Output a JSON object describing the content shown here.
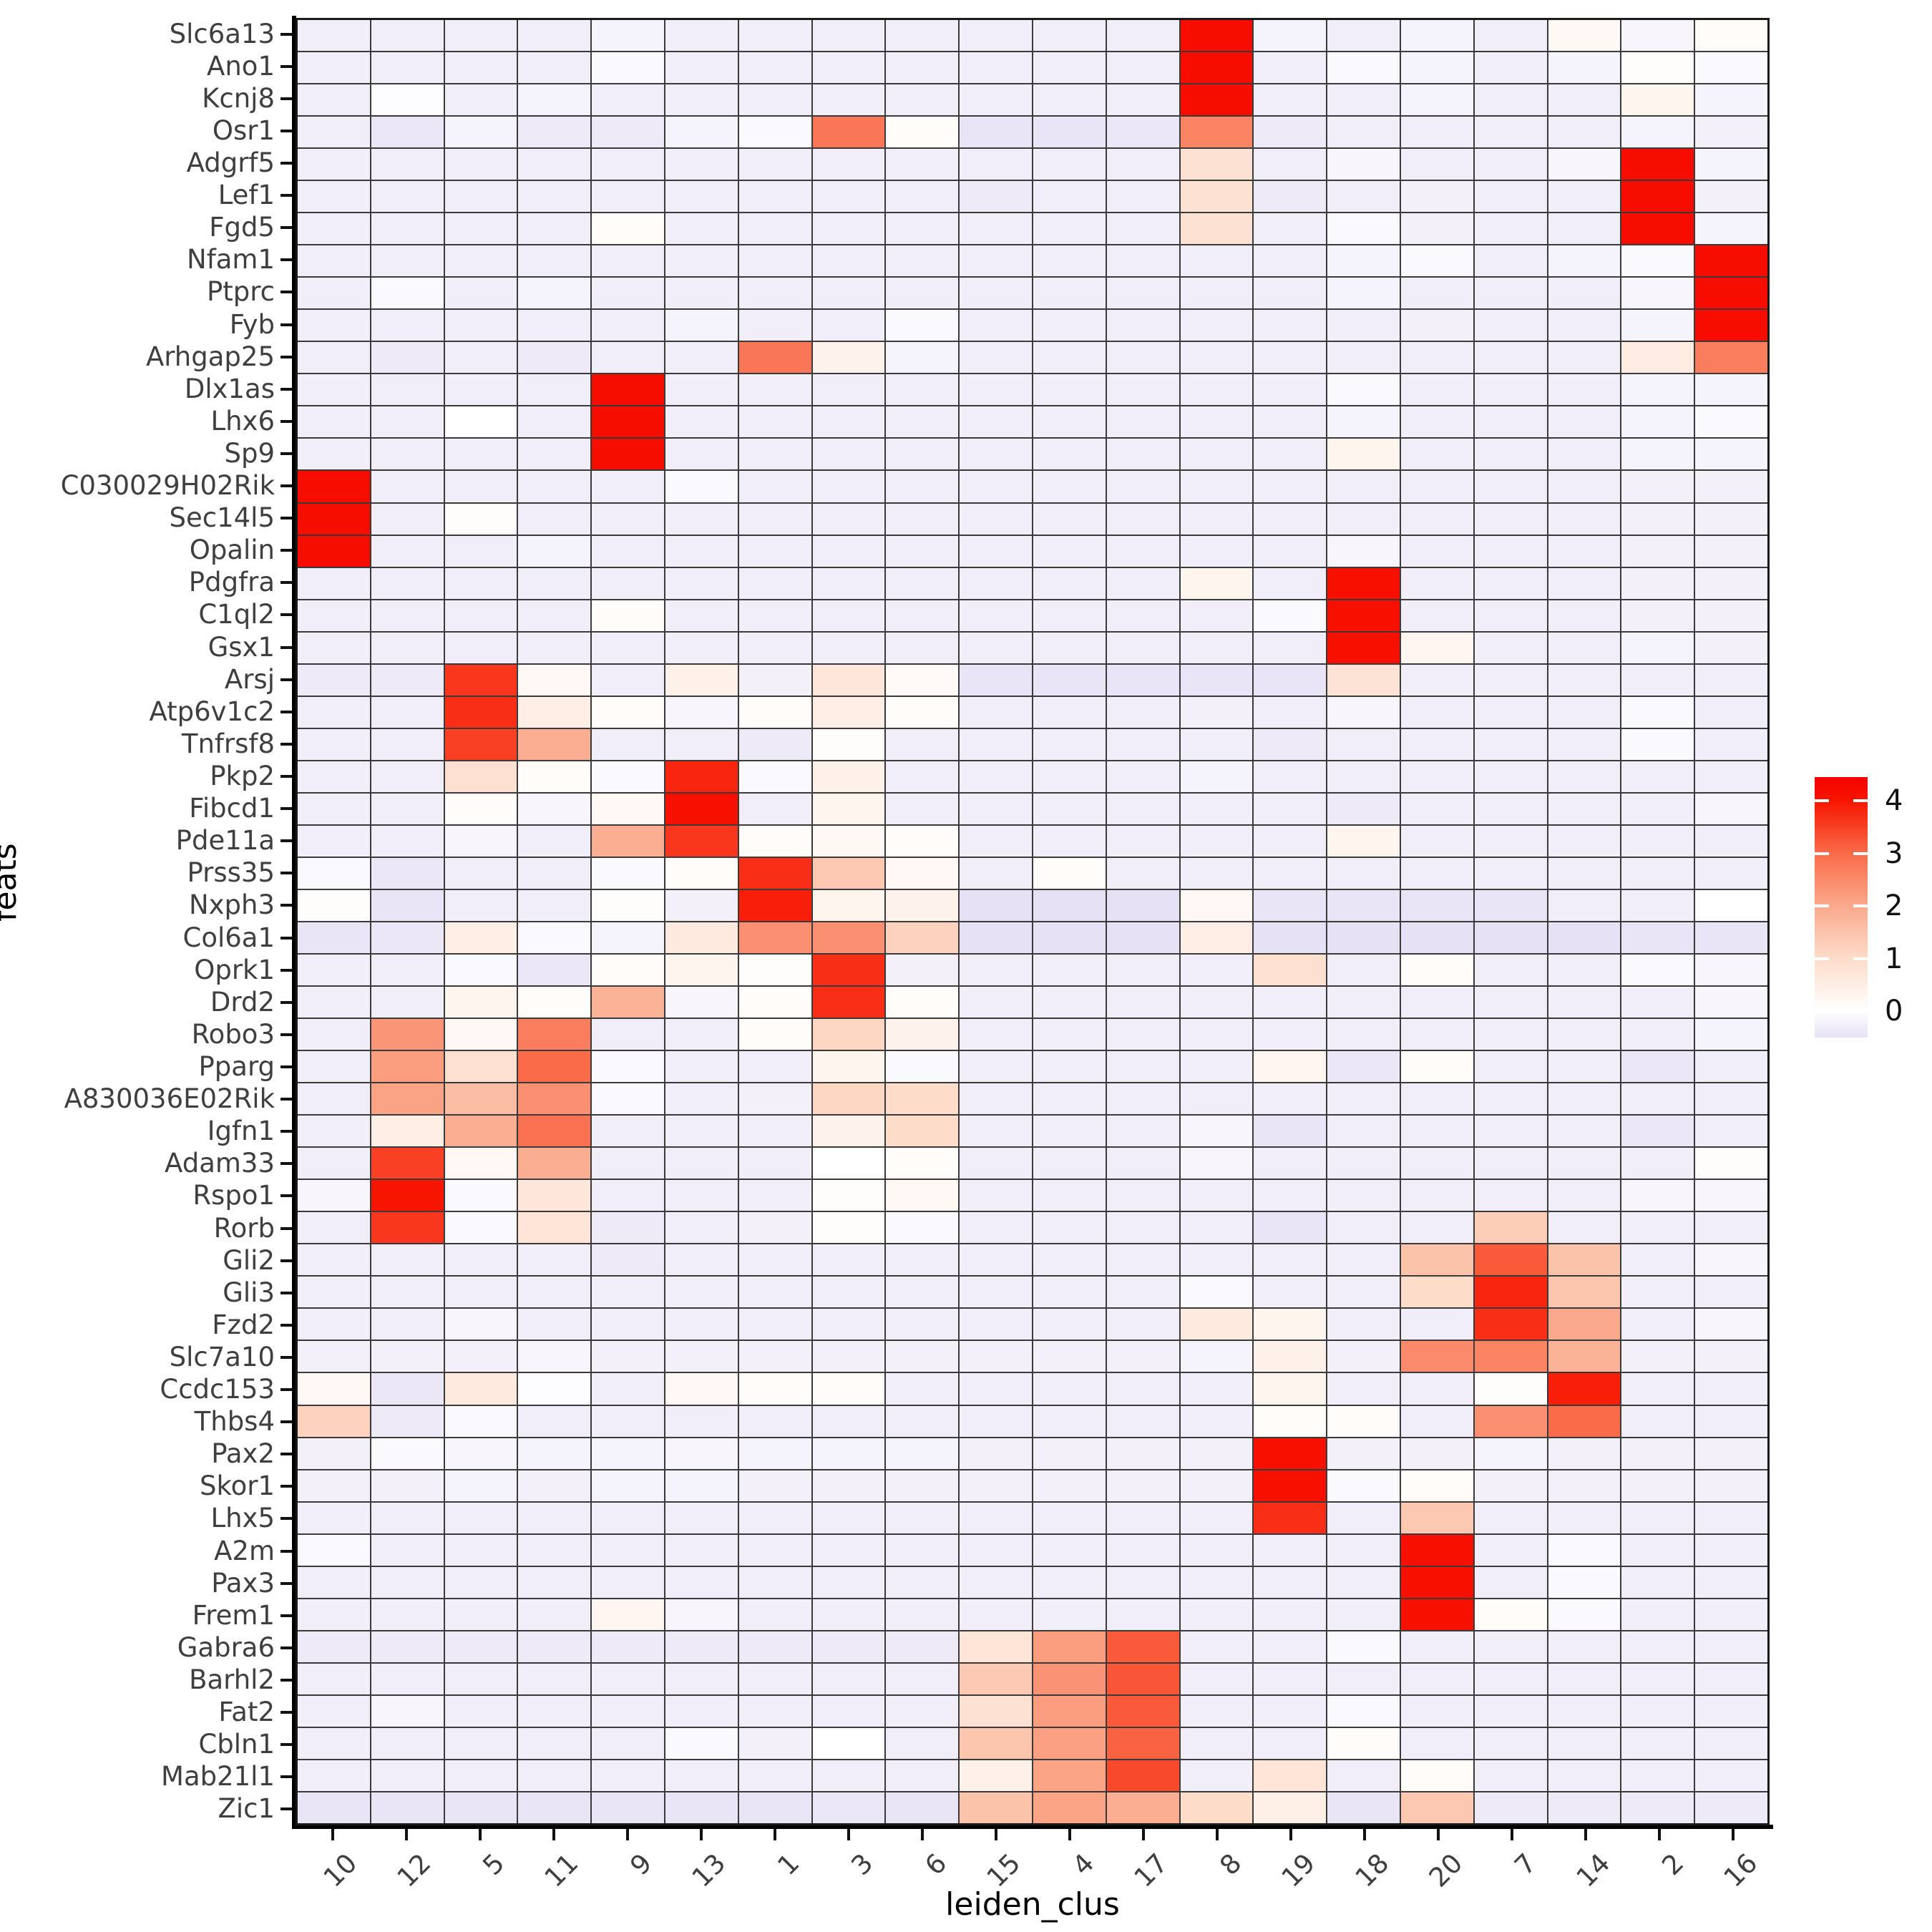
{
  "chart_data": {
    "type": "heatmap",
    "title": "",
    "xlabel": "leiden_clus",
    "ylabel": "feats",
    "legend_position": "right",
    "grid": true,
    "grid_color": "#3a3a3a",
    "x_categories": [
      "10",
      "12",
      "5",
      "11",
      "9",
      "13",
      "1",
      "3",
      "6",
      "15",
      "4",
      "17",
      "8",
      "19",
      "18",
      "20",
      "7",
      "14",
      "2",
      "16"
    ],
    "y_categories": [
      "Slc6a13",
      "Ano1",
      "Kcnj8",
      "Osr1",
      "Adgrf5",
      "Lef1",
      "Fgd5",
      "Nfam1",
      "Ptprc",
      "Fyb",
      "Arhgap25",
      "Dlx1as",
      "Lhx6",
      "Sp9",
      "C030029H02Rik",
      "Sec14l5",
      "Opalin",
      "Pdgfra",
      "C1ql2",
      "Gsx1",
      "Arsj",
      "Atp6v1c2",
      "Tnfrsf8",
      "Pkp2",
      "Fibcd1",
      "Pde11a",
      "Prss35",
      "Nxph3",
      "Col6a1",
      "Oprk1",
      "Drd2",
      "Robo3",
      "Pparg",
      "A830036E02Rik",
      "Igfn1",
      "Adam33",
      "Rspo1",
      "Rorb",
      "Gli2",
      "Gli3",
      "Fzd2",
      "Slc7a10",
      "Ccdc153",
      "Thbs4",
      "Pax2",
      "Skor1",
      "Lhx5",
      "A2m",
      "Pax3",
      "Frem1",
      "Gabra6",
      "Barhl2",
      "Fat2",
      "Cbln1",
      "Mab21l1",
      "Zic1"
    ],
    "values": [
      [
        -0.3,
        -0.3,
        -0.3,
        -0.3,
        -0.2,
        -0.3,
        -0.3,
        -0.3,
        -0.3,
        -0.3,
        -0.3,
        -0.3,
        4.2,
        -0.2,
        -0.3,
        -0.2,
        -0.3,
        0.2,
        -0.15,
        0.1
      ],
      [
        -0.3,
        -0.3,
        -0.3,
        -0.3,
        -0.1,
        -0.3,
        -0.3,
        -0.3,
        -0.3,
        -0.3,
        -0.3,
        -0.3,
        4.2,
        -0.3,
        -0.1,
        -0.2,
        -0.3,
        -0.2,
        0.05,
        -0.1
      ],
      [
        -0.3,
        -0.05,
        -0.3,
        -0.2,
        -0.3,
        -0.3,
        -0.3,
        -0.3,
        -0.3,
        -0.3,
        -0.3,
        -0.3,
        4.2,
        -0.3,
        -0.3,
        -0.2,
        -0.3,
        -0.3,
        0.3,
        -0.2
      ],
      [
        -0.3,
        -0.4,
        -0.2,
        -0.35,
        -0.35,
        -0.2,
        -0.1,
        2.8,
        0.1,
        -0.45,
        -0.45,
        -0.4,
        2.6,
        -0.35,
        -0.3,
        -0.3,
        -0.3,
        -0.3,
        -0.2,
        -0.25
      ],
      [
        -0.3,
        -0.3,
        -0.3,
        -0.3,
        -0.3,
        -0.3,
        -0.3,
        -0.3,
        -0.3,
        -0.3,
        -0.3,
        -0.3,
        0.85,
        -0.3,
        -0.15,
        -0.3,
        -0.3,
        -0.15,
        4.2,
        -0.2
      ],
      [
        -0.3,
        -0.3,
        -0.3,
        -0.3,
        -0.3,
        -0.3,
        -0.3,
        -0.3,
        -0.3,
        -0.35,
        -0.3,
        -0.3,
        0.85,
        -0.35,
        -0.3,
        -0.25,
        -0.3,
        -0.3,
        4.2,
        -0.25
      ],
      [
        -0.3,
        -0.3,
        -0.3,
        -0.3,
        0.1,
        -0.3,
        -0.3,
        -0.3,
        -0.3,
        -0.3,
        -0.3,
        -0.3,
        0.85,
        -0.3,
        -0.1,
        -0.25,
        -0.3,
        -0.3,
        4.2,
        -0.2
      ],
      [
        -0.3,
        -0.3,
        -0.3,
        -0.3,
        -0.3,
        -0.3,
        -0.3,
        -0.3,
        -0.3,
        -0.3,
        -0.3,
        -0.3,
        -0.3,
        -0.3,
        -0.2,
        -0.1,
        -0.3,
        -0.2,
        -0.1,
        4.2
      ],
      [
        -0.3,
        -0.1,
        -0.3,
        -0.2,
        -0.3,
        -0.3,
        -0.3,
        -0.3,
        -0.3,
        -0.3,
        -0.3,
        -0.3,
        -0.3,
        -0.3,
        -0.2,
        -0.3,
        -0.3,
        -0.3,
        -0.15,
        4.2
      ],
      [
        -0.3,
        -0.3,
        -0.3,
        -0.3,
        -0.3,
        -0.2,
        -0.3,
        -0.3,
        -0.1,
        -0.3,
        -0.3,
        -0.3,
        -0.3,
        -0.3,
        -0.3,
        -0.25,
        -0.3,
        -0.3,
        -0.2,
        4.2
      ],
      [
        -0.3,
        -0.35,
        -0.3,
        -0.35,
        -0.3,
        -0.3,
        2.8,
        0.35,
        -0.2,
        -0.3,
        -0.3,
        -0.3,
        -0.3,
        -0.3,
        -0.3,
        -0.3,
        -0.3,
        -0.3,
        0.55,
        2.7
      ],
      [
        -0.3,
        -0.3,
        -0.3,
        -0.3,
        4.2,
        -0.3,
        -0.3,
        -0.3,
        -0.3,
        -0.3,
        -0.3,
        -0.3,
        -0.3,
        -0.3,
        -0.1,
        -0.3,
        -0.3,
        -0.3,
        -0.2,
        -0.2
      ],
      [
        -0.3,
        -0.3,
        0,
        -0.3,
        4.2,
        -0.3,
        -0.3,
        -0.3,
        -0.3,
        -0.3,
        -0.3,
        -0.3,
        -0.3,
        -0.3,
        -0.2,
        -0.3,
        -0.3,
        -0.3,
        -0.2,
        -0.1
      ],
      [
        -0.3,
        -0.3,
        -0.3,
        -0.3,
        4.2,
        -0.3,
        -0.3,
        -0.3,
        -0.3,
        -0.3,
        -0.3,
        -0.3,
        -0.3,
        -0.3,
        0.3,
        -0.3,
        -0.3,
        -0.3,
        -0.2,
        -0.2
      ],
      [
        4.2,
        -0.3,
        -0.3,
        -0.3,
        -0.3,
        -0.1,
        -0.3,
        -0.3,
        -0.3,
        -0.3,
        -0.3,
        -0.3,
        -0.3,
        -0.3,
        -0.3,
        -0.3,
        -0.3,
        -0.3,
        -0.25,
        -0.25
      ],
      [
        4.2,
        -0.3,
        0.05,
        -0.3,
        -0.3,
        -0.3,
        -0.3,
        -0.3,
        -0.3,
        -0.3,
        -0.3,
        -0.3,
        -0.3,
        -0.3,
        -0.3,
        -0.3,
        -0.3,
        -0.3,
        -0.25,
        -0.25
      ],
      [
        4.2,
        -0.3,
        -0.3,
        -0.2,
        -0.3,
        -0.3,
        -0.3,
        -0.3,
        -0.3,
        -0.3,
        -0.3,
        -0.3,
        -0.3,
        -0.3,
        -0.15,
        -0.3,
        -0.3,
        -0.3,
        -0.25,
        -0.25
      ],
      [
        -0.3,
        -0.3,
        -0.3,
        -0.3,
        -0.3,
        -0.3,
        -0.3,
        -0.3,
        -0.3,
        -0.3,
        -0.3,
        -0.3,
        0.3,
        -0.3,
        4.1,
        -0.3,
        -0.3,
        -0.3,
        -0.25,
        -0.25
      ],
      [
        -0.3,
        -0.3,
        -0.3,
        -0.3,
        0.1,
        -0.3,
        -0.3,
        -0.3,
        -0.3,
        -0.3,
        -0.3,
        -0.3,
        -0.3,
        -0.1,
        4.1,
        -0.3,
        -0.3,
        -0.3,
        -0.25,
        -0.25
      ],
      [
        -0.3,
        -0.3,
        -0.3,
        -0.3,
        -0.3,
        -0.3,
        -0.3,
        -0.3,
        -0.3,
        -0.3,
        -0.3,
        -0.3,
        -0.3,
        -0.3,
        4.1,
        0.25,
        -0.3,
        -0.3,
        -0.2,
        -0.25
      ],
      [
        -0.35,
        -0.35,
        3.6,
        0.2,
        -0.3,
        0.4,
        -0.25,
        0.7,
        0.15,
        -0.45,
        -0.45,
        -0.45,
        -0.45,
        -0.45,
        0.8,
        -0.3,
        -0.3,
        -0.3,
        -0.3,
        -0.3
      ],
      [
        -0.3,
        -0.3,
        3.7,
        0.5,
        0.1,
        -0.15,
        0.1,
        0.5,
        0.1,
        -0.3,
        -0.3,
        -0.3,
        -0.25,
        -0.3,
        -0.15,
        -0.3,
        -0.3,
        -0.3,
        -0.1,
        -0.3
      ],
      [
        -0.3,
        -0.3,
        3.5,
        1.9,
        -0.3,
        -0.3,
        -0.35,
        0.05,
        -0.3,
        -0.3,
        -0.3,
        -0.3,
        -0.3,
        -0.35,
        -0.3,
        -0.3,
        -0.3,
        -0.3,
        -0.1,
        -0.3
      ],
      [
        -0.3,
        -0.3,
        0.9,
        0.1,
        -0.1,
        3.8,
        -0.1,
        0.4,
        -0.3,
        -0.3,
        -0.3,
        -0.3,
        -0.2,
        -0.3,
        -0.3,
        -0.3,
        -0.3,
        -0.3,
        -0.3,
        -0.3
      ],
      [
        -0.3,
        -0.3,
        0.1,
        -0.15,
        0.2,
        4.1,
        -0.3,
        0.3,
        -0.3,
        -0.3,
        -0.3,
        -0.3,
        -0.3,
        -0.3,
        -0.35,
        -0.3,
        -0.3,
        -0.3,
        -0.3,
        -0.15
      ],
      [
        -0.3,
        -0.3,
        -0.15,
        -0.3,
        1.9,
        3.6,
        0.1,
        0.2,
        0.1,
        -0.3,
        -0.3,
        -0.3,
        -0.3,
        -0.3,
        0.3,
        -0.3,
        -0.3,
        -0.3,
        -0.3,
        -0.3
      ],
      [
        -0.1,
        -0.4,
        -0.3,
        -0.3,
        -0.1,
        0.1,
        3.7,
        1.4,
        0.2,
        -0.3,
        0.1,
        -0.3,
        -0.3,
        -0.3,
        -0.3,
        -0.3,
        -0.3,
        -0.3,
        -0.3,
        -0.3
      ],
      [
        0.05,
        -0.45,
        -0.3,
        -0.3,
        0.05,
        -0.25,
        3.9,
        0.3,
        0.35,
        -0.5,
        -0.5,
        -0.5,
        0.2,
        -0.45,
        -0.45,
        -0.45,
        -0.45,
        -0.3,
        -0.3,
        0
      ],
      [
        -0.45,
        -0.4,
        0.5,
        -0.1,
        -0.2,
        0.6,
        2.4,
        2.4,
        1.2,
        -0.5,
        -0.5,
        -0.5,
        0.5,
        -0.5,
        -0.5,
        -0.5,
        -0.5,
        -0.5,
        -0.45,
        -0.45
      ],
      [
        -0.3,
        -0.3,
        -0.1,
        -0.4,
        0.1,
        0.3,
        0.05,
        3.7,
        -0.25,
        -0.3,
        -0.3,
        -0.3,
        -0.3,
        0.9,
        -0.3,
        0.1,
        -0.3,
        -0.3,
        -0.1,
        -0.15
      ],
      [
        -0.3,
        -0.3,
        0.3,
        0.1,
        1.8,
        -0.15,
        0.1,
        3.7,
        0.1,
        -0.3,
        -0.3,
        -0.3,
        -0.3,
        -0.3,
        -0.3,
        -0.3,
        -0.3,
        -0.3,
        -0.3,
        -0.15
      ],
      [
        -0.3,
        2.3,
        0.2,
        2.7,
        -0.3,
        -0.3,
        0.1,
        1.1,
        0.35,
        -0.3,
        -0.3,
        -0.3,
        -0.3,
        -0.3,
        -0.3,
        -0.3,
        -0.3,
        -0.3,
        -0.3,
        -0.2
      ],
      [
        -0.3,
        2.2,
        0.9,
        3.0,
        -0.1,
        -0.3,
        -0.3,
        0.3,
        -0.1,
        -0.3,
        -0.3,
        -0.3,
        -0.3,
        0.25,
        -0.4,
        0.1,
        -0.3,
        -0.3,
        -0.4,
        -0.3
      ],
      [
        -0.3,
        2.1,
        1.6,
        2.4,
        -0.1,
        -0.3,
        -0.25,
        1.1,
        1.0,
        -0.3,
        -0.3,
        -0.3,
        -0.3,
        -0.3,
        -0.3,
        -0.3,
        -0.3,
        -0.3,
        -0.3,
        -0.3
      ],
      [
        -0.3,
        0.5,
        1.9,
        2.9,
        -0.3,
        -0.3,
        -0.3,
        0.35,
        1.0,
        -0.3,
        -0.3,
        -0.3,
        -0.15,
        -0.45,
        -0.3,
        -0.3,
        -0.3,
        -0.3,
        -0.4,
        -0.3
      ],
      [
        -0.3,
        3.5,
        0.2,
        1.9,
        -0.3,
        -0.3,
        -0.3,
        0,
        0.1,
        -0.3,
        -0.3,
        -0.3,
        -0.15,
        -0.3,
        -0.3,
        -0.3,
        -0.3,
        -0.3,
        -0.3,
        0.05
      ],
      [
        -0.15,
        4.0,
        -0.1,
        0.7,
        -0.3,
        -0.3,
        -0.3,
        0.05,
        0.2,
        -0.3,
        -0.3,
        -0.3,
        -0.3,
        -0.3,
        -0.3,
        -0.3,
        -0.3,
        -0.3,
        -0.15,
        -0.15
      ],
      [
        -0.3,
        3.6,
        -0.1,
        0.75,
        -0.35,
        -0.3,
        -0.25,
        0.05,
        -0.1,
        -0.3,
        -0.3,
        -0.3,
        -0.3,
        -0.45,
        -0.3,
        -0.3,
        1.3,
        -0.3,
        -0.3,
        -0.3
      ],
      [
        -0.3,
        -0.3,
        -0.3,
        -0.3,
        -0.35,
        -0.3,
        -0.3,
        -0.3,
        -0.3,
        -0.3,
        -0.3,
        -0.3,
        -0.3,
        -0.3,
        -0.3,
        1.5,
        3.2,
        1.5,
        -0.3,
        -0.15
      ],
      [
        -0.3,
        -0.3,
        -0.3,
        -0.3,
        -0.3,
        -0.3,
        -0.3,
        -0.3,
        -0.3,
        -0.3,
        -0.3,
        -0.3,
        -0.1,
        -0.3,
        -0.3,
        1.0,
        3.8,
        1.45,
        -0.3,
        -0.3
      ],
      [
        -0.3,
        -0.3,
        -0.15,
        -0.3,
        -0.3,
        -0.3,
        -0.3,
        -0.3,
        -0.3,
        -0.3,
        -0.3,
        -0.3,
        0.6,
        0.3,
        -0.3,
        -0.3,
        3.7,
        2.0,
        -0.3,
        -0.15
      ],
      [
        -0.25,
        -0.25,
        -0.25,
        -0.15,
        -0.25,
        -0.25,
        -0.25,
        -0.25,
        -0.25,
        -0.25,
        -0.25,
        -0.25,
        -0.2,
        0.4,
        -0.25,
        2.5,
        2.6,
        1.8,
        -0.25,
        -0.25
      ],
      [
        0.2,
        -0.4,
        0.6,
        -0.05,
        -0.3,
        0.2,
        0.1,
        0.1,
        -0.3,
        -0.3,
        -0.3,
        -0.3,
        -0.3,
        0.3,
        -0.3,
        -0.3,
        0.05,
        3.9,
        -0.3,
        -0.3
      ],
      [
        1.2,
        -0.35,
        -0.1,
        -0.3,
        -0.3,
        -0.3,
        -0.3,
        -0.3,
        -0.3,
        -0.3,
        -0.3,
        -0.3,
        -0.3,
        0.1,
        0.1,
        -0.3,
        2.4,
        3.0,
        -0.3,
        -0.3
      ],
      [
        -0.25,
        -0.1,
        -0.15,
        -0.2,
        -0.2,
        -0.15,
        -0.2,
        -0.2,
        -0.2,
        -0.25,
        -0.25,
        -0.25,
        -0.25,
        4.1,
        -0.25,
        -0.25,
        -0.2,
        -0.25,
        -0.25,
        -0.25
      ],
      [
        -0.25,
        -0.25,
        -0.2,
        -0.25,
        -0.2,
        -0.2,
        -0.25,
        -0.25,
        -0.25,
        -0.25,
        -0.25,
        -0.25,
        -0.25,
        4.1,
        -0.1,
        0.1,
        -0.25,
        -0.25,
        -0.25,
        -0.25
      ],
      [
        -0.3,
        -0.3,
        -0.3,
        -0.3,
        -0.3,
        -0.3,
        -0.3,
        -0.3,
        -0.3,
        -0.3,
        -0.3,
        -0.3,
        -0.3,
        3.7,
        -0.3,
        1.4,
        -0.3,
        -0.3,
        -0.3,
        -0.3
      ],
      [
        -0.1,
        -0.3,
        -0.3,
        -0.3,
        -0.3,
        -0.3,
        -0.3,
        -0.3,
        -0.3,
        -0.3,
        -0.3,
        -0.3,
        -0.3,
        -0.3,
        -0.3,
        4.1,
        -0.3,
        -0.1,
        -0.3,
        -0.3
      ],
      [
        -0.3,
        -0.3,
        -0.3,
        -0.3,
        -0.3,
        -0.3,
        -0.3,
        -0.3,
        -0.3,
        -0.3,
        -0.3,
        -0.3,
        -0.3,
        -0.3,
        -0.3,
        4.1,
        -0.3,
        -0.1,
        -0.3,
        -0.3
      ],
      [
        -0.3,
        -0.3,
        -0.3,
        -0.3,
        0.25,
        -0.15,
        -0.3,
        -0.3,
        -0.3,
        -0.3,
        -0.3,
        -0.3,
        -0.3,
        -0.3,
        -0.3,
        4.1,
        0.1,
        -0.1,
        -0.3,
        -0.3
      ],
      [
        -0.35,
        -0.35,
        -0.35,
        -0.35,
        -0.35,
        -0.35,
        -0.35,
        -0.35,
        -0.35,
        0.75,
        2.2,
        3.2,
        -0.3,
        -0.3,
        -0.1,
        -0.3,
        -0.3,
        -0.3,
        -0.3,
        -0.3
      ],
      [
        -0.3,
        -0.3,
        -0.3,
        -0.3,
        -0.3,
        -0.3,
        -0.3,
        -0.3,
        -0.3,
        1.35,
        2.35,
        3.25,
        -0.3,
        -0.3,
        -0.3,
        -0.3,
        -0.3,
        -0.3,
        -0.3,
        -0.3
      ],
      [
        -0.3,
        -0.15,
        -0.3,
        -0.3,
        -0.3,
        -0.3,
        -0.3,
        -0.3,
        -0.3,
        0.85,
        2.2,
        3.2,
        -0.3,
        -0.3,
        -0.1,
        -0.3,
        -0.3,
        -0.3,
        -0.3,
        -0.3
      ],
      [
        -0.3,
        -0.3,
        -0.3,
        -0.3,
        -0.3,
        -0.1,
        -0.25,
        0,
        -0.3,
        1.45,
        2.15,
        3.1,
        -0.3,
        -0.3,
        0.1,
        -0.3,
        -0.3,
        -0.3,
        -0.3,
        -0.3
      ],
      [
        -0.3,
        -0.3,
        -0.3,
        -0.3,
        -0.3,
        -0.3,
        -0.3,
        -0.3,
        -0.3,
        0.4,
        2.1,
        3.4,
        -0.3,
        0.75,
        -0.3,
        0.1,
        -0.3,
        -0.3,
        -0.3,
        -0.3
      ],
      [
        -0.45,
        -0.45,
        -0.45,
        -0.45,
        -0.45,
        -0.45,
        -0.45,
        -0.4,
        -0.45,
        1.5,
        2.1,
        1.9,
        1.0,
        0.45,
        -0.45,
        1.4,
        -0.35,
        -0.35,
        -0.35,
        -0.35
      ]
    ],
    "colorbar": {
      "ticks": [
        0,
        1,
        2,
        3,
        4
      ],
      "min": -0.5,
      "max": 4.45
    },
    "colorscale": [
      [
        -0.6,
        "#E2DBF3"
      ],
      [
        0.0,
        "#FFFFFF"
      ],
      [
        1.0,
        "#FDDCCA"
      ],
      [
        2.0,
        "#FBA98C"
      ],
      [
        3.0,
        "#F96B49"
      ],
      [
        4.0,
        "#F81500"
      ],
      [
        4.45,
        "#F50000"
      ]
    ]
  }
}
